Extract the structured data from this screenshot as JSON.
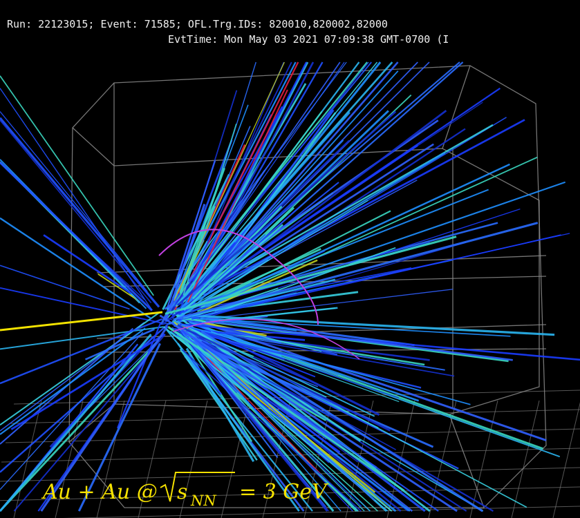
{
  "header": {
    "line1": "Run: 22123015; Event: 71585; OFL.Trg.IDs: 820010,820002,82000",
    "line2": "EvtTime: Mon May 03 2021 07:09:38 GMT-0700 (I"
  },
  "label": {
    "prefix": "Au + Au @",
    "sqrt_base": "s",
    "sqrt_sub": "NN",
    "suffix": "= 3 GeV"
  }
}
